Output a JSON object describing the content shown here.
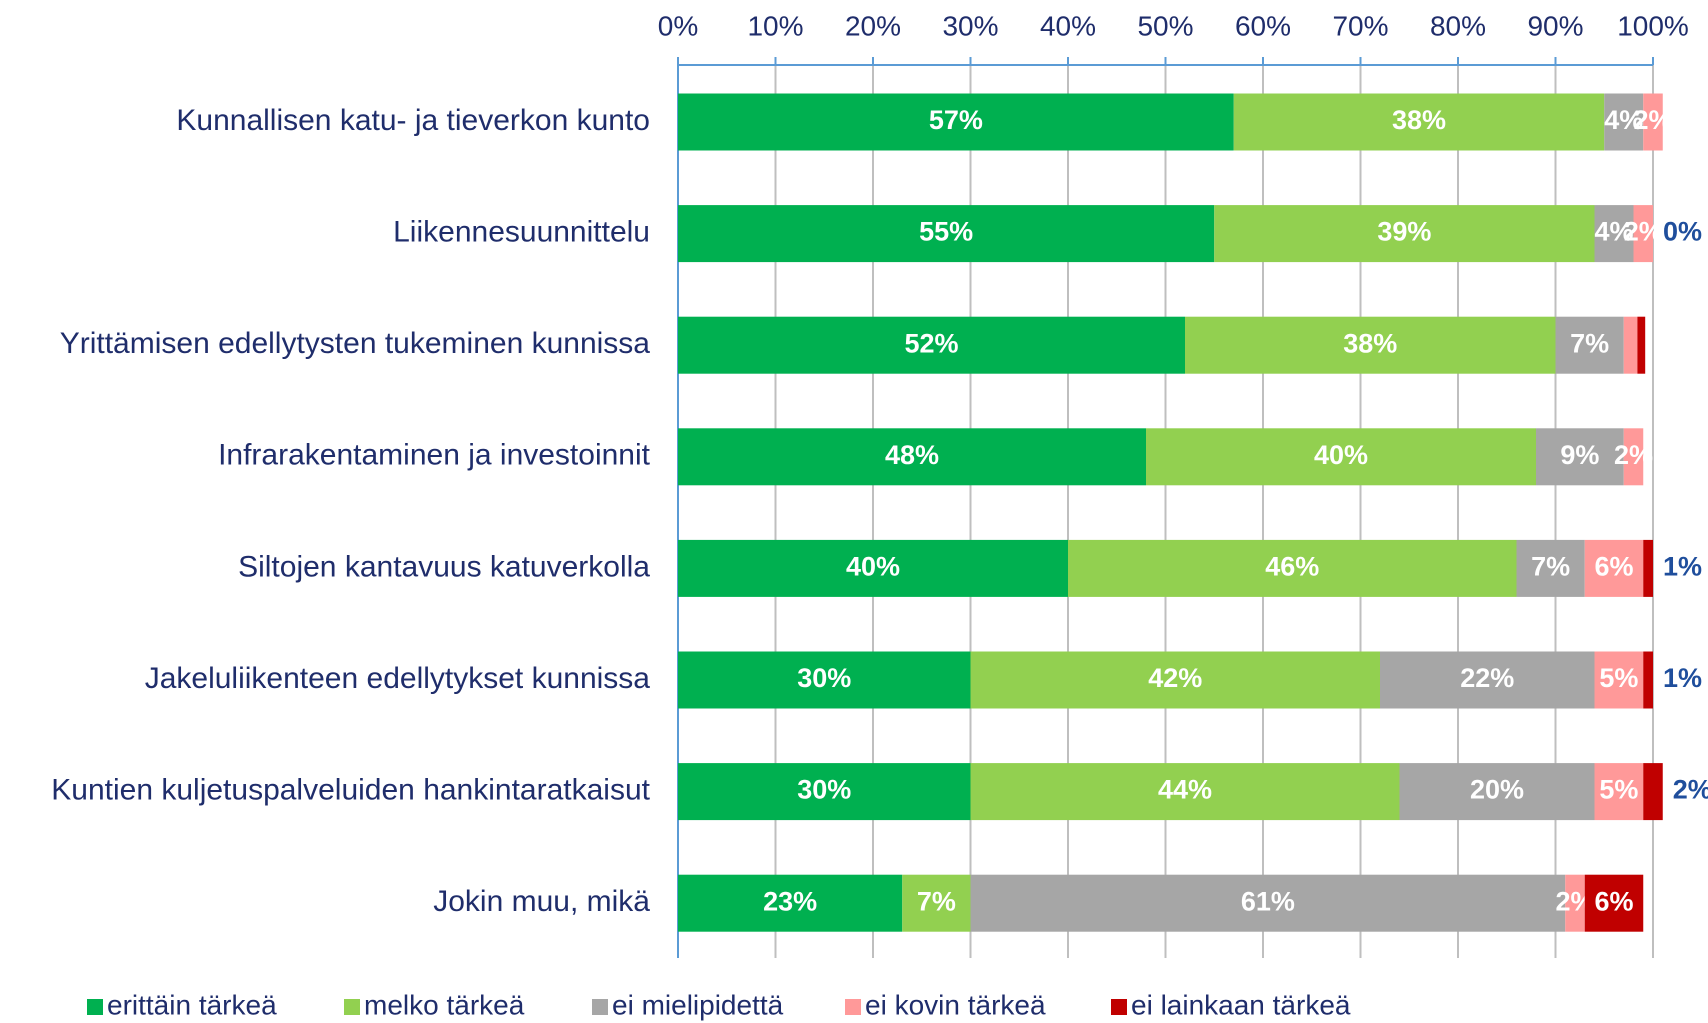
{
  "chart_data": {
    "type": "stacked-barh",
    "categories": [
      "Kunnallisen katu- ja tieverkon kunto",
      "Liikennesuunnittelu",
      "Yrittämisen edellytysten tukeminen kunnissa",
      "Infrarakentaminen ja investoinnit",
      "Siltojen kantavuus katuverkolla",
      "Jakeluliikenteen edellytykset kunnissa",
      "Kuntien kuljetuspalveluiden hankintaratkaisut",
      "Jokin muu, mikä"
    ],
    "series": [
      {
        "name": "erittäin tärkeä",
        "color": "#00b050",
        "values": [
          57,
          55,
          52,
          48,
          40,
          30,
          30,
          23
        ],
        "value_labels": [
          "57%",
          "55%",
          "52%",
          "48%",
          "40%",
          "30%",
          "30%",
          "23%"
        ]
      },
      {
        "name": "melko tärkeä",
        "color": "#92d050",
        "values": [
          38,
          39,
          38,
          40,
          46,
          42,
          44,
          7
        ],
        "value_labels": [
          "38%",
          "39%",
          "38%",
          "40%",
          "46%",
          "42%",
          "44%",
          "7%"
        ]
      },
      {
        "name": "ei mielipidettä",
        "color": "#a6a6a6",
        "values": [
          4,
          4,
          7,
          9,
          7,
          22,
          20,
          61
        ],
        "value_labels": [
          "4%",
          "4%",
          "7%",
          "9%",
          "7%",
          "22%",
          "20%",
          "61%"
        ]
      },
      {
        "name": "ei kovin tärkeä",
        "color": "#ff9999",
        "values": [
          2,
          2,
          1.4,
          2,
          6,
          5,
          5,
          2
        ],
        "value_labels": [
          "2%",
          "2%",
          null,
          "2%",
          "6%",
          "5%",
          "5%",
          "2%"
        ]
      },
      {
        "name": "ei lainkaan tärkeä",
        "color": "#c00000",
        "values": [
          null,
          0,
          0.8,
          null,
          1,
          1,
          2,
          6
        ],
        "value_labels": [
          null,
          "0%",
          null,
          null,
          "1%",
          "1%",
          "2%",
          "6%"
        ]
      }
    ],
    "xlim": [
      0,
      100
    ],
    "xticks": [
      {
        "value": 0,
        "label": "0%"
      },
      {
        "value": 10,
        "label": "10%"
      },
      {
        "value": 20,
        "label": "20%"
      },
      {
        "value": 30,
        "label": "30%"
      },
      {
        "value": 40,
        "label": "40%"
      },
      {
        "value": 50,
        "label": "50%"
      },
      {
        "value": 60,
        "label": "60%"
      },
      {
        "value": 70,
        "label": "70%"
      },
      {
        "value": 80,
        "label": "80%"
      },
      {
        "value": 90,
        "label": "90%"
      },
      {
        "value": 100,
        "label": "100%"
      }
    ],
    "grid": true,
    "legend": "bottom"
  }
}
